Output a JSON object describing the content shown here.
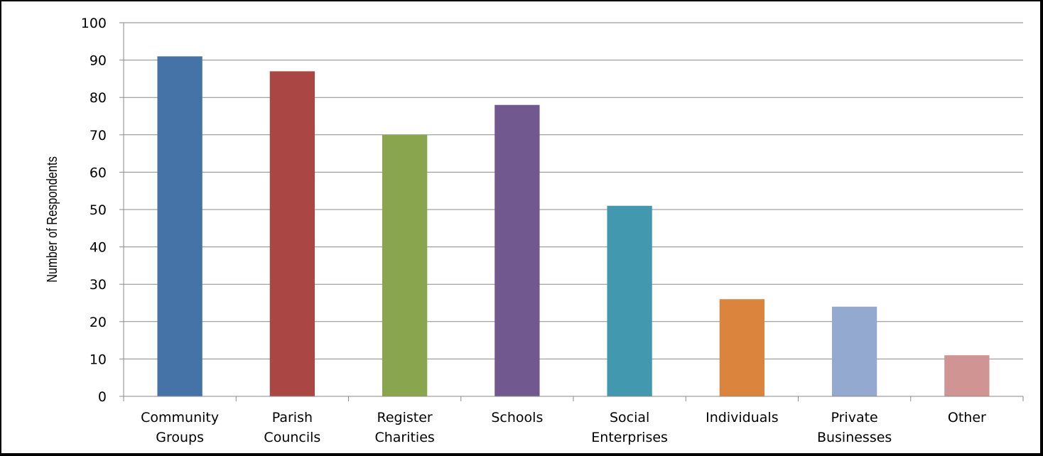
{
  "chart_data": {
    "type": "bar",
    "categories": [
      [
        "Community",
        "Groups"
      ],
      [
        "Parish",
        "Councils"
      ],
      [
        "Register",
        "Charities"
      ],
      [
        "Schools"
      ],
      [
        "Social",
        "Enterprises"
      ],
      [
        "Individuals"
      ],
      [
        "Private",
        "Businesses"
      ],
      [
        "Other"
      ]
    ],
    "values": [
      91,
      87,
      70,
      78,
      51,
      26,
      24,
      11
    ],
    "colors": [
      "#4572a7",
      "#aa4643",
      "#89a54e",
      "#71588f",
      "#4198af",
      "#db843d",
      "#93a9cf",
      "#d09593"
    ],
    "title": "",
    "xlabel": "",
    "ylabel": "Number of Respondents",
    "ylim": [
      0,
      100
    ],
    "yticks": [
      0,
      10,
      20,
      30,
      40,
      50,
      60,
      70,
      80,
      90,
      100
    ],
    "grid": true,
    "legend": "none"
  }
}
